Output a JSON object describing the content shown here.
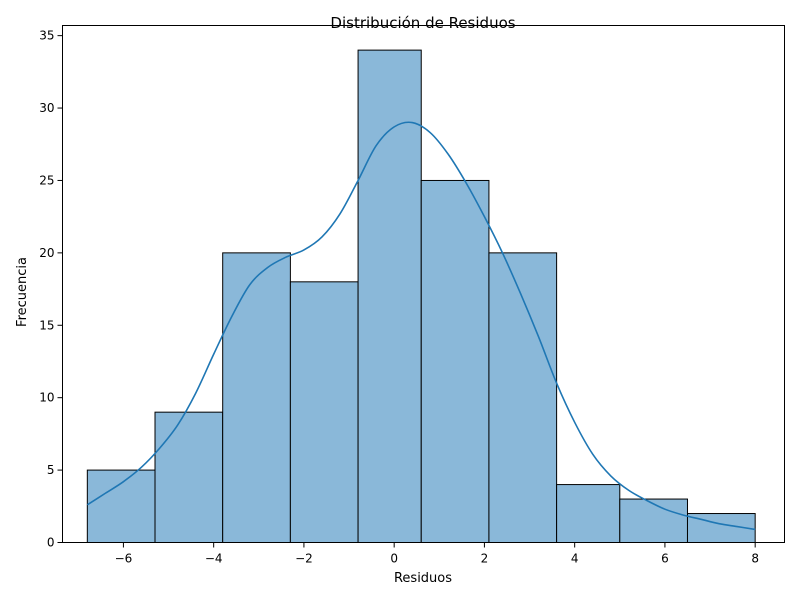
{
  "chart_data": {
    "type": "histogram",
    "title": "Distribución de Residuos",
    "xlabel": "Residuos",
    "ylabel": "Frecuencia",
    "xlim": [
      -7.35,
      8.65
    ],
    "ylim": [
      0,
      35.7
    ],
    "bin_edges": [
      -6.8,
      -5.3,
      -3.8,
      -2.3,
      -0.8,
      0.6,
      2.1,
      3.6,
      5.0,
      6.5,
      8.0
    ],
    "counts": [
      5,
      9,
      20,
      18,
      34,
      25,
      20,
      4,
      3,
      2
    ],
    "bar_color": "#8ab8d9",
    "edge_color": "#000000",
    "kde_color": "#1f77b4",
    "kde_curve": [
      [
        -6.8,
        2.6
      ],
      [
        -6.4,
        3.4
      ],
      [
        -6.0,
        4.2
      ],
      [
        -5.6,
        5.2
      ],
      [
        -5.2,
        6.5
      ],
      [
        -4.8,
        8.1
      ],
      [
        -4.4,
        10.3
      ],
      [
        -4.0,
        13.0
      ],
      [
        -3.6,
        15.6
      ],
      [
        -3.2,
        17.8
      ],
      [
        -2.8,
        19.0
      ],
      [
        -2.4,
        19.7
      ],
      [
        -2.0,
        20.2
      ],
      [
        -1.6,
        21.1
      ],
      [
        -1.2,
        22.7
      ],
      [
        -0.8,
        25.0
      ],
      [
        -0.4,
        27.4
      ],
      [
        0.0,
        28.7
      ],
      [
        0.4,
        29.0
      ],
      [
        0.8,
        28.3
      ],
      [
        1.2,
        26.8
      ],
      [
        1.6,
        24.8
      ],
      [
        2.0,
        22.5
      ],
      [
        2.4,
        20.0
      ],
      [
        2.8,
        17.2
      ],
      [
        3.2,
        14.2
      ],
      [
        3.6,
        11.0
      ],
      [
        4.0,
        8.3
      ],
      [
        4.4,
        6.1
      ],
      [
        4.8,
        4.6
      ],
      [
        5.2,
        3.6
      ],
      [
        5.6,
        2.9
      ],
      [
        6.0,
        2.3
      ],
      [
        6.4,
        1.9
      ],
      [
        6.8,
        1.6
      ],
      [
        7.2,
        1.3
      ],
      [
        7.6,
        1.1
      ],
      [
        8.0,
        0.9
      ]
    ],
    "x_ticks": [
      -6,
      -4,
      -2,
      0,
      2,
      4,
      6,
      8
    ],
    "x_tick_labels": [
      "−6",
      "−4",
      "−2",
      "0",
      "2",
      "4",
      "6",
      "8"
    ],
    "y_ticks": [
      0,
      5,
      10,
      15,
      20,
      25,
      30,
      35
    ],
    "y_tick_labels": [
      "0",
      "5",
      "10",
      "15",
      "20",
      "25",
      "30",
      "35"
    ],
    "grid": false
  }
}
